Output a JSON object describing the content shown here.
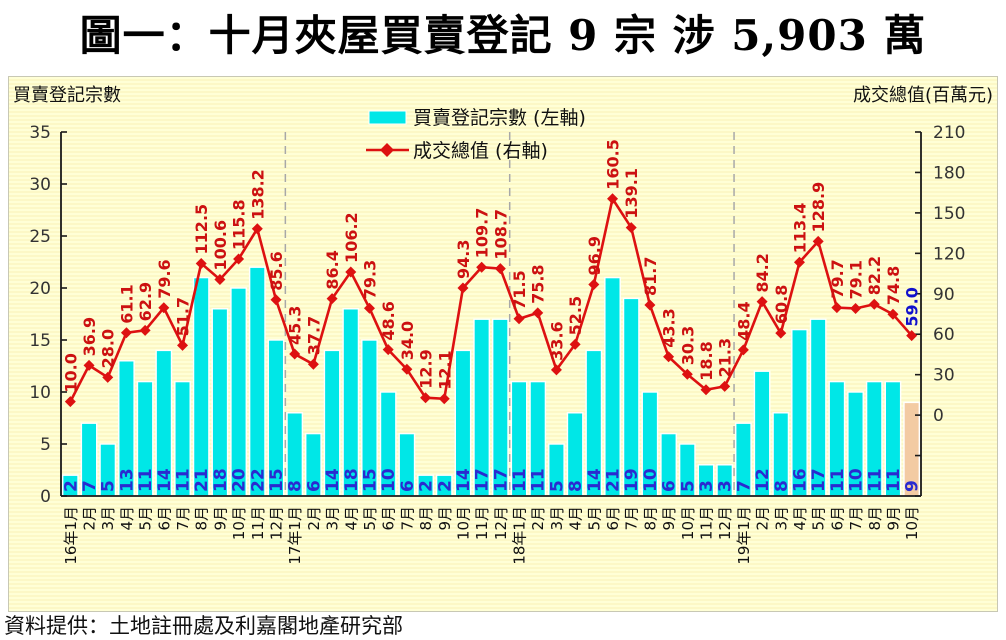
{
  "title": "圖一：十月夾屋買賣登記 9 宗  涉 5,903 萬",
  "footer": "資料提供：土地註冊處及利嘉閣地產研究部",
  "left_axis_title": "買賣登記宗數",
  "right_axis_title": "成交總值(百萬元)",
  "legend": {
    "bars": "買賣登記宗數 (左軸)",
    "line": "成交總值 (右軸)"
  },
  "colors": {
    "bar": "#00e7e7",
    "bar_highlight": "#f3cba3",
    "line": "#dd1111",
    "value_label": "#cc1111",
    "value_label_highlight": "#1111cc",
    "bar_label": "#2a2ad0",
    "panel_bg": "#ffffd6",
    "separator": "#a8a8a8",
    "axis": "#1a1a1a",
    "tick_text": "#333333"
  },
  "chart_data": {
    "type": "bar",
    "subtype": "combo-bar-line-dual-axis",
    "title": "圖一：十月夾屋買賣登記 9 宗  涉 5,903 萬",
    "categories": [
      "16年1月",
      "2月",
      "3月",
      "4月",
      "5月",
      "6月",
      "7月",
      "8月",
      "9月",
      "10月",
      "11月",
      "12月",
      "17年1月",
      "2月",
      "3月",
      "4月",
      "5月",
      "6月",
      "7月",
      "8月",
      "9月",
      "10月",
      "11月",
      "12月",
      "18年1月",
      "2月",
      "3月",
      "4月",
      "5月",
      "6月",
      "7月",
      "8月",
      "9月",
      "10月",
      "11月",
      "12月",
      "19年1月",
      "2月",
      "3月",
      "4月",
      "5月",
      "6月",
      "7月",
      "8月",
      "9月",
      "10月"
    ],
    "series": [
      {
        "name": "買賣登記宗數 (左軸)",
        "type": "bar",
        "axis": "left",
        "values": [
          2,
          7,
          5,
          13,
          11,
          14,
          11,
          21,
          18,
          20,
          22,
          15,
          8,
          6,
          14,
          18,
          15,
          10,
          6,
          2,
          2,
          14,
          17,
          17,
          11,
          11,
          5,
          8,
          14,
          21,
          19,
          10,
          6,
          5,
          3,
          3,
          7,
          12,
          8,
          16,
          17,
          11,
          10,
          11,
          11,
          9
        ]
      },
      {
        "name": "成交總值 (右軸)",
        "type": "line",
        "axis": "right",
        "values": [
          10.0,
          36.9,
          28.0,
          61.1,
          62.9,
          79.6,
          51.7,
          112.5,
          100.6,
          115.8,
          138.2,
          85.6,
          45.3,
          37.7,
          86.4,
          106.2,
          79.3,
          48.6,
          34.0,
          12.9,
          12.1,
          94.3,
          109.7,
          108.7,
          71.5,
          75.8,
          33.6,
          52.5,
          96.9,
          160.5,
          139.1,
          81.7,
          43.3,
          30.3,
          18.8,
          21.3,
          48.4,
          84.2,
          60.8,
          113.4,
          128.9,
          79.7,
          79.1,
          82.2,
          74.8,
          59.0
        ]
      }
    ],
    "left_axis": {
      "label": "買賣登記宗數",
      "min": 0,
      "max": 35,
      "step": 5,
      "ticks": [
        0,
        5,
        10,
        15,
        20,
        25,
        30,
        35
      ]
    },
    "right_axis": {
      "label": "成交總值(百萬元)",
      "min": 0,
      "max": 210,
      "step": 30,
      "ticks": [
        0,
        30,
        60,
        90,
        120,
        150,
        180,
        210
      ],
      "plot_min": -60
    },
    "legend_position": "top-center",
    "grid": "off",
    "year_separators": "dashed vertical lines before 17年1月, 18年1月, 19年1月",
    "highlight_last_point": true
  }
}
